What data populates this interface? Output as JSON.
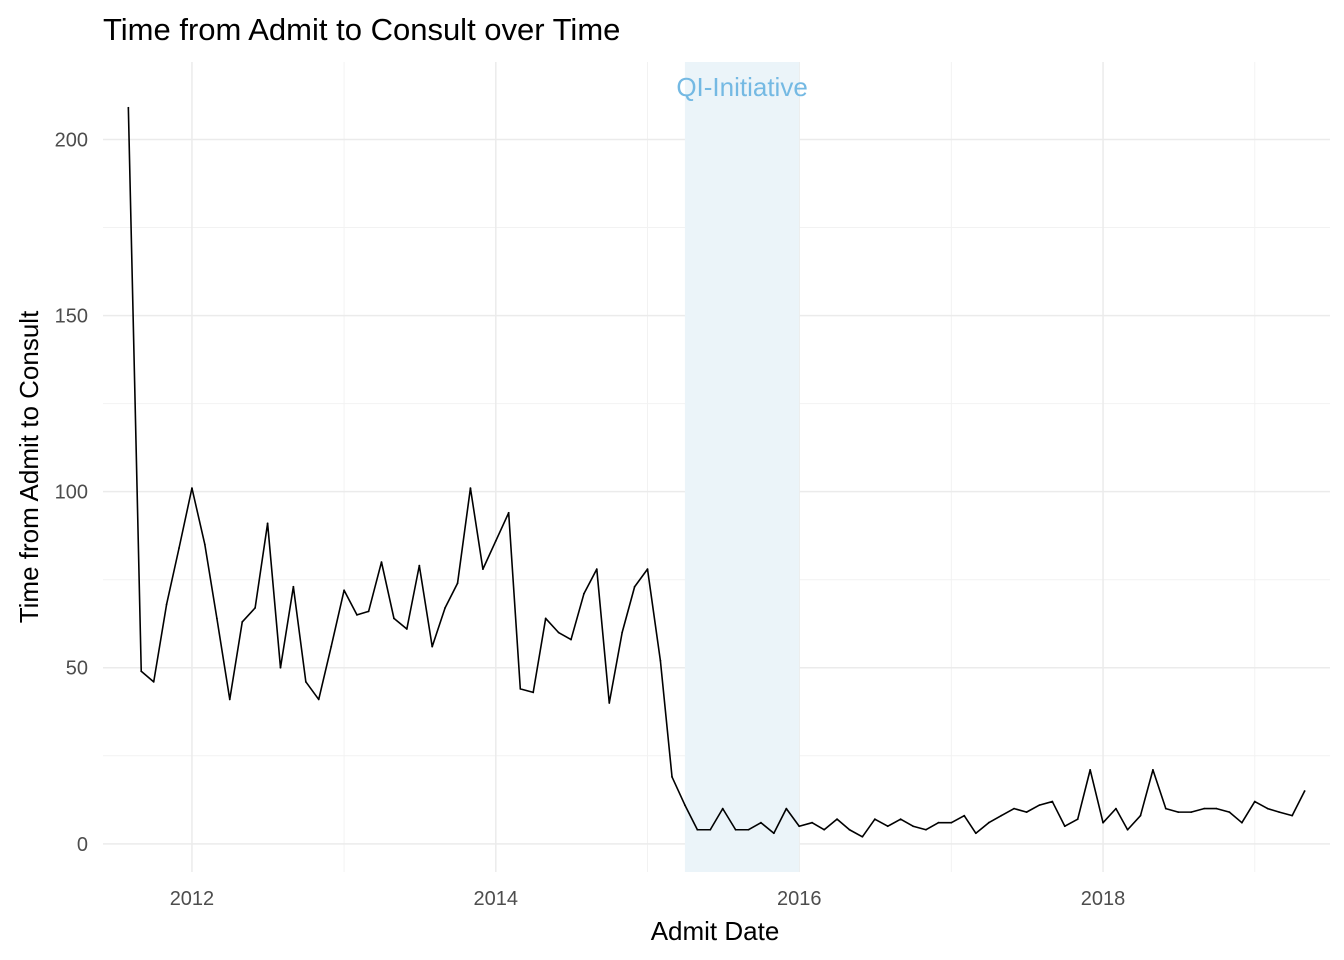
{
  "chart_data": {
    "type": "line",
    "title": "Time from Admit to Consult over Time",
    "xlabel": "Admit Date",
    "ylabel": "Time from Admit to Consult",
    "x_tick_labels": [
      "2012",
      "2014",
      "2016",
      "2018"
    ],
    "y_tick_labels": [
      "0",
      "50",
      "100",
      "150",
      "200"
    ],
    "xlim": [
      "2011-06-01",
      "2019-07-01"
    ],
    "ylim": [
      -8,
      222
    ],
    "grid": true,
    "annotation": {
      "text": "QI-Initiative",
      "shade_start": "2015-04-01",
      "shade_end": "2016-01-01",
      "text_color": "#74b9e3",
      "shade_color": "#ebf4f9"
    },
    "series": [
      {
        "color": "#000000",
        "points": [
          [
            "2011-08-01",
            209
          ],
          [
            "2011-09-01",
            49
          ],
          [
            "2011-10-01",
            46
          ],
          [
            "2011-11-01",
            68
          ],
          [
            "2011-12-01",
            84
          ],
          [
            "2012-01-01",
            101
          ],
          [
            "2012-02-01",
            85
          ],
          [
            "2012-03-01",
            64
          ],
          [
            "2012-04-01",
            41
          ],
          [
            "2012-05-01",
            63
          ],
          [
            "2012-06-01",
            67
          ],
          [
            "2012-07-01",
            91
          ],
          [
            "2012-08-01",
            50
          ],
          [
            "2012-09-01",
            73
          ],
          [
            "2012-10-01",
            46
          ],
          [
            "2012-11-01",
            41
          ],
          [
            "2012-12-01",
            56
          ],
          [
            "2013-01-01",
            72
          ],
          [
            "2013-02-01",
            65
          ],
          [
            "2013-03-01",
            66
          ],
          [
            "2013-04-01",
            80
          ],
          [
            "2013-05-01",
            64
          ],
          [
            "2013-06-01",
            61
          ],
          [
            "2013-07-01",
            79
          ],
          [
            "2013-08-01",
            56
          ],
          [
            "2013-09-01",
            67
          ],
          [
            "2013-10-01",
            74
          ],
          [
            "2013-11-01",
            101
          ],
          [
            "2013-12-01",
            78
          ],
          [
            "2014-01-01",
            86
          ],
          [
            "2014-02-01",
            94
          ],
          [
            "2014-03-01",
            44
          ],
          [
            "2014-04-01",
            43
          ],
          [
            "2014-05-01",
            64
          ],
          [
            "2014-06-01",
            60
          ],
          [
            "2014-07-01",
            58
          ],
          [
            "2014-08-01",
            71
          ],
          [
            "2014-09-01",
            78
          ],
          [
            "2014-10-01",
            40
          ],
          [
            "2014-11-01",
            60
          ],
          [
            "2014-12-01",
            73
          ],
          [
            "2015-01-01",
            78
          ],
          [
            "2015-02-01",
            52
          ],
          [
            "2015-03-01",
            19
          ],
          [
            "2015-04-01",
            11
          ],
          [
            "2015-05-01",
            4
          ],
          [
            "2015-06-01",
            4
          ],
          [
            "2015-07-01",
            10
          ],
          [
            "2015-08-01",
            4
          ],
          [
            "2015-09-01",
            4
          ],
          [
            "2015-10-01",
            6
          ],
          [
            "2015-11-01",
            3
          ],
          [
            "2015-12-01",
            10
          ],
          [
            "2016-01-01",
            5
          ],
          [
            "2016-02-01",
            6
          ],
          [
            "2016-03-01",
            4
          ],
          [
            "2016-04-01",
            7
          ],
          [
            "2016-05-01",
            4
          ],
          [
            "2016-06-01",
            2
          ],
          [
            "2016-07-01",
            7
          ],
          [
            "2016-08-01",
            5
          ],
          [
            "2016-09-01",
            7
          ],
          [
            "2016-10-01",
            5
          ],
          [
            "2016-11-01",
            4
          ],
          [
            "2016-12-01",
            6
          ],
          [
            "2017-01-01",
            6
          ],
          [
            "2017-02-01",
            8
          ],
          [
            "2017-03-01",
            3
          ],
          [
            "2017-04-01",
            6
          ],
          [
            "2017-05-01",
            8
          ],
          [
            "2017-06-01",
            10
          ],
          [
            "2017-07-01",
            9
          ],
          [
            "2017-08-01",
            11
          ],
          [
            "2017-09-01",
            12
          ],
          [
            "2017-10-01",
            5
          ],
          [
            "2017-11-01",
            7
          ],
          [
            "2017-12-01",
            21
          ],
          [
            "2018-01-01",
            6
          ],
          [
            "2018-02-01",
            10
          ],
          [
            "2018-03-01",
            4
          ],
          [
            "2018-04-01",
            8
          ],
          [
            "2018-05-01",
            21
          ],
          [
            "2018-06-01",
            10
          ],
          [
            "2018-07-01",
            9
          ],
          [
            "2018-08-01",
            9
          ],
          [
            "2018-09-01",
            10
          ],
          [
            "2018-10-01",
            10
          ],
          [
            "2018-11-01",
            9
          ],
          [
            "2018-12-01",
            6
          ],
          [
            "2019-01-01",
            12
          ],
          [
            "2019-02-01",
            10
          ],
          [
            "2019-03-01",
            9
          ],
          [
            "2019-04-01",
            8
          ],
          [
            "2019-05-01",
            15
          ]
        ]
      }
    ]
  }
}
